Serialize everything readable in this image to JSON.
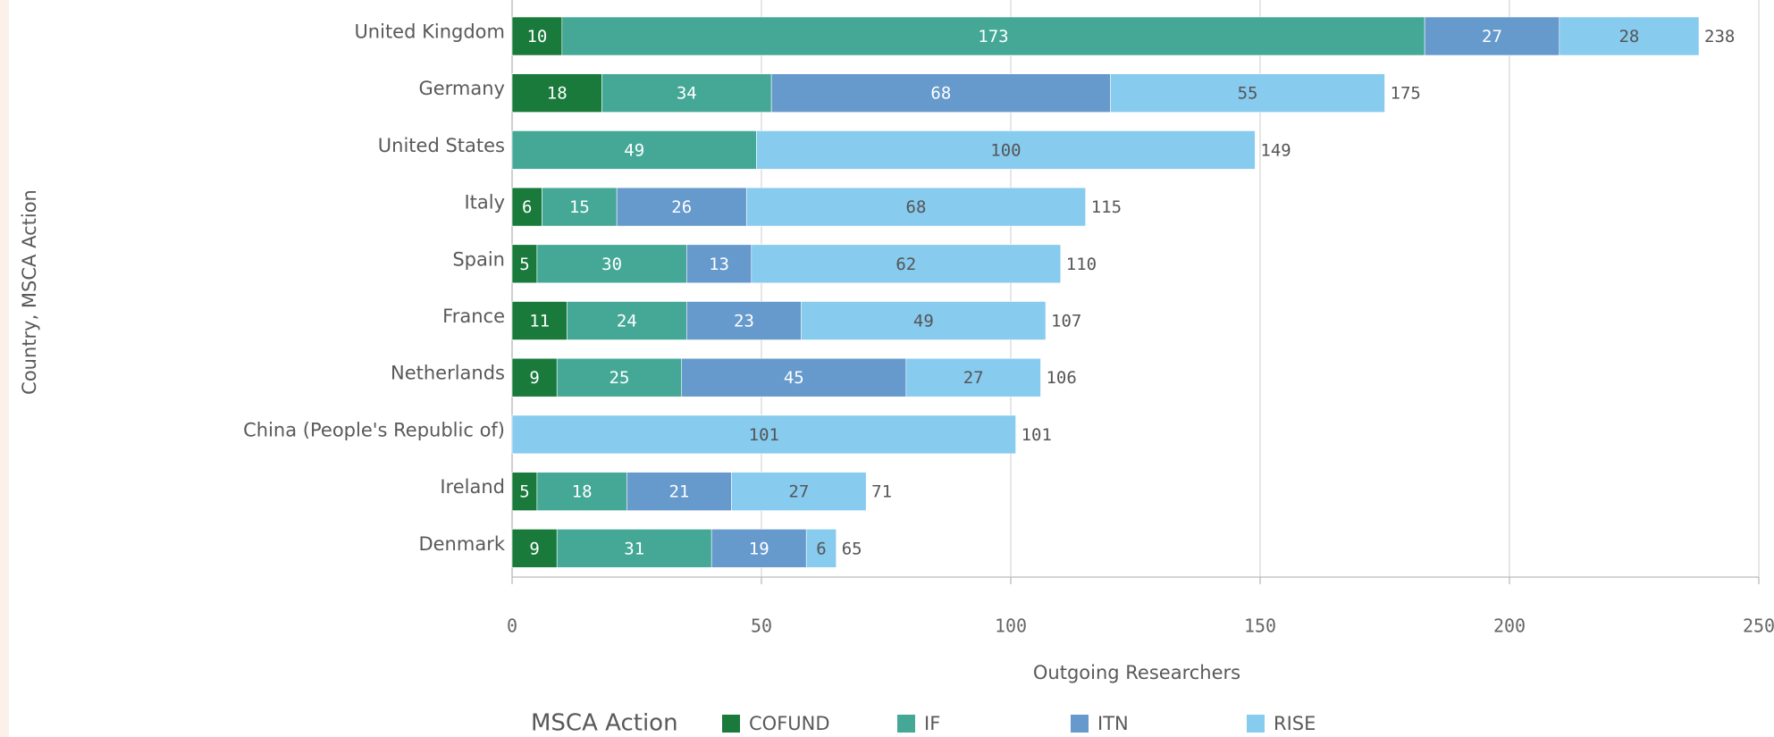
{
  "chart_data": {
    "type": "bar",
    "orientation": "horizontal",
    "stacked": true,
    "y_axis_label": "Country, MSCA Action",
    "x_axis_label": "Outgoing Researchers",
    "legend_title": "MSCA Action",
    "legend": "bottom",
    "grid": true,
    "categories": [
      "United Kingdom",
      "Germany",
      "United States",
      "Italy",
      "Spain",
      "France",
      "Netherlands",
      "China (People's Republic of)",
      "Ireland",
      "Denmark"
    ],
    "series": [
      {
        "name": "COFUND",
        "color": "#197a3c",
        "values": [
          10,
          18,
          null,
          6,
          5,
          11,
          9,
          null,
          5,
          9
        ]
      },
      {
        "name": "IF",
        "color": "#45a896",
        "values": [
          173,
          34,
          49,
          15,
          30,
          24,
          25,
          null,
          18,
          31
        ]
      },
      {
        "name": "ITN",
        "color": "#6699cc",
        "values": [
          27,
          68,
          null,
          26,
          13,
          23,
          45,
          null,
          21,
          19
        ]
      },
      {
        "name": "RISE",
        "color": "#87cbef",
        "values": [
          28,
          55,
          100,
          68,
          62,
          49,
          27,
          101,
          27,
          6
        ]
      }
    ],
    "totals": [
      238,
      175,
      149,
      115,
      110,
      107,
      106,
      101,
      71,
      65
    ],
    "xlim": [
      0,
      250
    ],
    "xticks": [
      0,
      50,
      100,
      150,
      200,
      250
    ]
  }
}
